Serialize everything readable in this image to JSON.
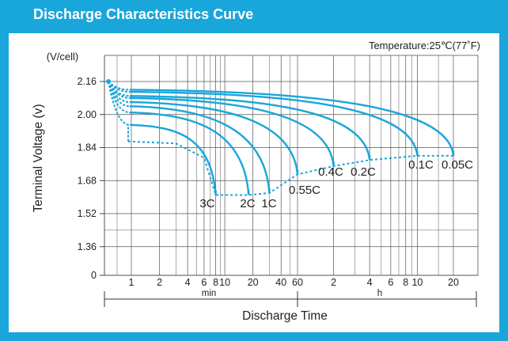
{
  "title": "Discharge Characteristics Curve",
  "temperature_note": "Temperature:25℃(77˚F)",
  "colors": {
    "frame": "#19a6da",
    "curve": "#19a6da",
    "grid": "#555555"
  },
  "chart_data": {
    "type": "line",
    "title": "Discharge Characteristics Curve",
    "annotation": "Temperature:25℃(77˚F)",
    "ylabel": "Terminal  Voltage  (v)",
    "y_unit": "(V/cell)",
    "xlabel": "Discharge  Time",
    "x_scale": "log",
    "ylim": [
      0,
      2.2
    ],
    "y_ticks": [
      0,
      1.36,
      1.52,
      1.68,
      1.84,
      2.0,
      2.16
    ],
    "y_tick_labels": [
      "0",
      "1.36",
      "1.52",
      "1.68",
      "1.84",
      "2.00",
      "2.16"
    ],
    "x_ticks_min": [
      1,
      2,
      4,
      6,
      8,
      10,
      20,
      40,
      60
    ],
    "x_tick_labels_min": [
      "1",
      "2",
      "4",
      "6",
      "8",
      "10",
      "20",
      "40",
      "60"
    ],
    "x_ticks_h": [
      2,
      4,
      6,
      8,
      10,
      20
    ],
    "x_tick_labels_h": [
      "2",
      "4",
      "6",
      "8",
      "10",
      "20"
    ],
    "x_unit_min": "min",
    "x_unit_h": "h",
    "grid": true,
    "start_voltage": 2.16,
    "series": [
      {
        "name": "3C",
        "start_voltage": 1.95,
        "end_time_min": 8,
        "end_voltage": 1.61
      },
      {
        "name": "2C",
        "start_voltage": 2.01,
        "end_time_min": 18,
        "end_voltage": 1.61
      },
      {
        "name": "1C",
        "start_voltage": 2.04,
        "end_time_min": 30,
        "end_voltage": 1.62
      },
      {
        "name": "0.55C",
        "start_voltage": 2.06,
        "end_time_min": 60,
        "end_voltage": 1.71
      },
      {
        "name": "0.4C",
        "start_voltage": 2.08,
        "end_time_min": 120,
        "end_voltage": 1.75
      },
      {
        "name": "0.2C",
        "start_voltage": 2.09,
        "end_time_min": 240,
        "end_voltage": 1.78
      },
      {
        "name": "0.1C",
        "start_voltage": 2.11,
        "end_time_min": 600,
        "end_voltage": 1.8
      },
      {
        "name": "0.05C",
        "start_voltage": 2.12,
        "end_time_min": 1200,
        "end_voltage": 1.8
      }
    ],
    "end_voltage_curve": [
      [
        0.5,
        1.87
      ],
      [
        3,
        1.86
      ],
      [
        6,
        1.79
      ],
      [
        8,
        1.61
      ],
      [
        18,
        1.61
      ],
      [
        30,
        1.62
      ],
      [
        60,
        1.71
      ],
      [
        120,
        1.75
      ],
      [
        240,
        1.78
      ],
      [
        600,
        1.8
      ],
      [
        1200,
        1.8
      ]
    ]
  }
}
